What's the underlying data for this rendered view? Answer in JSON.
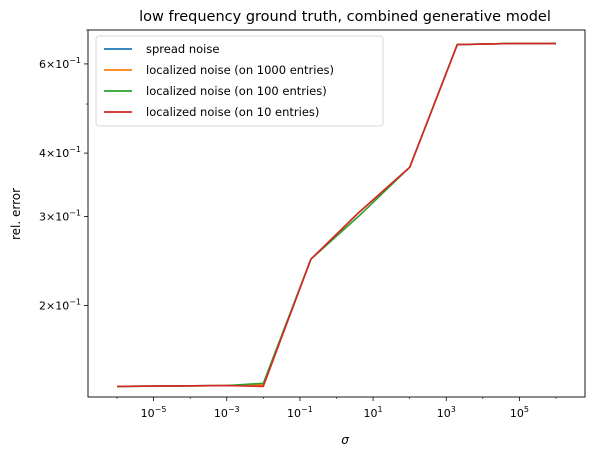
{
  "chart_data": {
    "type": "line",
    "title": "low frequency ground truth, combined generative model",
    "xlabel": "σ",
    "ylabel": "rel. error",
    "xscale": "log",
    "yscale": "log",
    "xlim": [
      1e-06,
      1000000.0
    ],
    "ylim": [
      0.132,
      0.7
    ],
    "x_ticks": [
      {
        "value": 1e-05,
        "base": "10",
        "exp": "−5"
      },
      {
        "value": 0.001,
        "base": "10",
        "exp": "−3"
      },
      {
        "value": 0.1,
        "base": "10",
        "exp": "−1"
      },
      {
        "value": 10,
        "base": "10",
        "exp": "1"
      },
      {
        "value": 1000,
        "base": "10",
        "exp": "3"
      },
      {
        "value": 100000,
        "base": "10",
        "exp": "5"
      }
    ],
    "y_ticks": [
      {
        "value": 0.2,
        "mant": "2",
        "base": "10",
        "exp": "−1"
      },
      {
        "value": 0.3,
        "mant": "3",
        "base": "10",
        "exp": "−1"
      },
      {
        "value": 0.4,
        "mant": "4",
        "base": "10",
        "exp": "−1"
      },
      {
        "value": 0.6,
        "mant": "6",
        "base": "10",
        "exp": "−1"
      }
    ],
    "legend_position": "top-left",
    "grid": false,
    "series": [
      {
        "name": "spread noise",
        "color": "#1f77b4",
        "x": [
          1e-06,
          0.001,
          0.01,
          0.2,
          4,
          100,
          2000,
          50000,
          1000000
        ],
        "y": [
          0.1385,
          0.139,
          0.1395,
          0.247,
          0.305,
          0.375,
          0.655,
          0.658,
          0.658
        ]
      },
      {
        "name": "localized noise (on 1000 entries)",
        "color": "#ff7f0e",
        "x": [
          1e-06,
          0.001,
          0.01,
          0.2,
          4,
          100,
          2000,
          50000,
          1000000
        ],
        "y": [
          0.1385,
          0.139,
          0.1395,
          0.247,
          0.305,
          0.375,
          0.655,
          0.658,
          0.658
        ]
      },
      {
        "name": "localized noise (on 100 entries)",
        "color": "#2ca02c",
        "x": [
          1e-06,
          0.001,
          0.01,
          0.2,
          4,
          100,
          2000,
          50000,
          1000000
        ],
        "y": [
          0.1385,
          0.139,
          0.1405,
          0.247,
          0.3,
          0.375,
          0.655,
          0.658,
          0.658
        ]
      },
      {
        "name": "localized noise (on 10 entries)",
        "color": "#d62728",
        "x": [
          1e-06,
          0.001,
          0.01,
          0.2,
          4,
          100,
          2000,
          50000,
          1000000
        ],
        "y": [
          0.1385,
          0.139,
          0.1385,
          0.247,
          0.305,
          0.375,
          0.655,
          0.658,
          0.658
        ]
      }
    ]
  }
}
